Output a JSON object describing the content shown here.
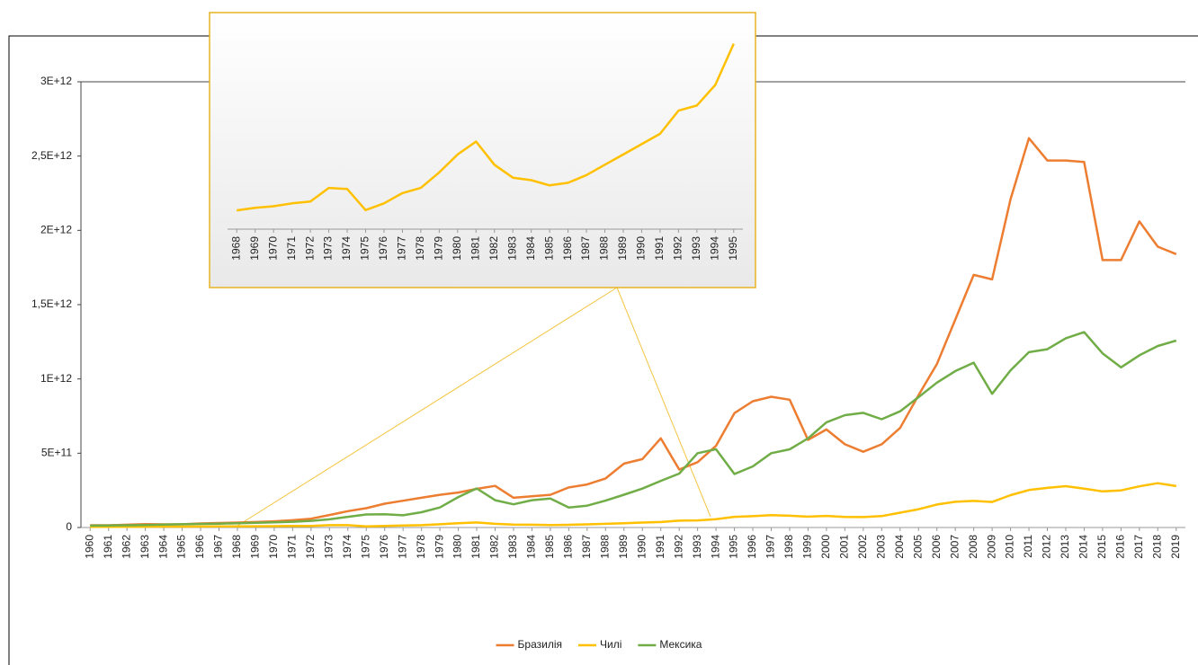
{
  "chart_data": [
    {
      "type": "line",
      "categories": [
        "1960",
        "1961",
        "1962",
        "1963",
        "1964",
        "1965",
        "1966",
        "1967",
        "1968",
        "1969",
        "1970",
        "1971",
        "1972",
        "1973",
        "1974",
        "1975",
        "1976",
        "1977",
        "1978",
        "1979",
        "1980",
        "1981",
        "1982",
        "1983",
        "1984",
        "1985",
        "1986",
        "1987",
        "1988",
        "1989",
        "1990",
        "1991",
        "1992",
        "1993",
        "1994",
        "1995",
        "1996",
        "1997",
        "1998",
        "1999",
        "2000",
        "2001",
        "2002",
        "2003",
        "2004",
        "2005",
        "2006",
        "2007",
        "2008",
        "2009",
        "2010",
        "2011",
        "2012",
        "2013",
        "2014",
        "2015",
        "2016",
        "2017",
        "2018",
        "2019"
      ],
      "series": [
        {
          "name": "Бразилія",
          "color": "#ed7d31",
          "values": [
            15000000000.0,
            15000000000.0,
            19000000000.0,
            23000000000.0,
            21000000000.0,
            22000000000.0,
            27000000000.0,
            30000000000.0,
            33000000000.0,
            37000000000.0,
            42000000000.0,
            49000000000.0,
            59000000000.0,
            84000000000.0,
            110000000000.0,
            130000000000.0,
            160000000000.0,
            180000000000.0,
            200000000000.0,
            220000000000.0,
            235000000000.0,
            260000000000.0,
            280000000000.0,
            200000000000.0,
            210000000000.0,
            220000000000.0,
            270000000000.0,
            290000000000.0,
            330000000000.0,
            430000000000.0,
            460000000000.0,
            600000000000.0,
            390000000000.0,
            440000000000.0,
            550000000000.0,
            770000000000.0,
            850000000000.0,
            880000000000.0,
            860000000000.0,
            590000000000.0,
            660000000000.0,
            560000000000.0,
            510000000000.0,
            560000000000.0,
            670000000000.0,
            890000000000.0,
            1100000000000.0,
            1400000000000.0,
            1700000000000.0,
            1670000000000.0,
            2210000000000.0,
            2620000000000.0,
            2470000000000.0,
            2470000000000.0,
            2460000000000.0,
            1800000000000.0,
            1800000000000.0,
            2060000000000.0,
            1890000000000.0,
            1840000000000.0
          ]
        },
        {
          "name": "Чилі",
          "color": "#ffc000",
          "values": [
            4100000000.0,
            4600000000.0,
            5100000000.0,
            5700000000.0,
            6000000000.0,
            5900000000.0,
            6900000000.0,
            7100000000.0,
            7300000000.0,
            8300000000.0,
            8900000000.0,
            10000000000.0,
            10700000000.0,
            16000000000.0,
            15600000000.0,
            7400000000.0,
            10000000000.0,
            14000000000.0,
            16000000000.0,
            22000000000.0,
            29000000000.0,
            34000000000.0,
            25000000000.0,
            20000000000.0,
            19000000000.0,
            17000000000.0,
            18000000000.0,
            21000000000.0,
            25000000000.0,
            29000000000.0,
            33000000000.0,
            37000000000.0,
            46000000000.0,
            48000000000.0,
            56000000000.0,
            72000000000.0,
            76000000000.0,
            83000000000.0,
            79000000000.0,
            73000000000.0,
            78000000000.0,
            71000000000.0,
            70000000000.0,
            77000000000.0,
            100000000000.0,
            123000000000.0,
            155000000000.0,
            173000000000.0,
            179000000000.0,
            172000000000.0,
            218000000000.0,
            252000000000.0,
            267000000000.0,
            278000000000.0,
            261000000000.0,
            243000000000.0,
            250000000000.0,
            277000000000.0,
            298000000000.0,
            279000000000.0
          ]
        },
        {
          "name": "Мексика",
          "color": "#70ad47",
          "values": [
            13000000000.0,
            14000000000.0,
            15000000000.0,
            17000000000.0,
            20000000000.0,
            22000000000.0,
            24000000000.0,
            26000000000.0,
            29000000000.0,
            32000000000.0,
            35000000000.0,
            39000000000.0,
            45000000000.0,
            55000000000.0,
            72000000000.0,
            88000000000.0,
            89000000000.0,
            82000000000.0,
            103000000000.0,
            135000000000.0,
            205000000000.0,
            263000000000.0,
            184000000000.0,
            156000000000.0,
            184000000000.0,
            195000000000.0,
            134000000000.0,
            147000000000.0,
            181000000000.0,
            221000000000.0,
            262000000000.0,
            314000000000.0,
            363000000000.0,
            500000000000.0,
            527000000000.0,
            360000000000.0,
            411000000000.0,
            500000000000.0,
            526000000000.0,
            600000000000.0,
            708000000000.0,
            756000000000.0,
            772000000000.0,
            729000000000.0,
            782000000000.0,
            877000000000.0,
            975000000000.0,
            1053000000000.0,
            1109000000000.0,
            900000000000.0,
            1058000000000.0,
            1180000000000.0,
            1200000000000.0,
            1274000000000.0,
            1315000000000.0,
            1172000000000.0,
            1078000000000.0,
            1159000000000.0,
            1222000000000.0,
            1258000000000.0
          ]
        }
      ],
      "ylim": [
        0,
        3000000000000.0
      ],
      "yticks": [
        0,
        {
          "value": 500000000000.0,
          "label": "5E+11"
        },
        {
          "value": 1000000000000.0,
          "label": "1E+12"
        },
        {
          "value": 1500000000000.0,
          "label": "1,5E+12"
        },
        {
          "value": 2000000000000.0,
          "label": "2E+12"
        },
        {
          "value": 2500000000000.0,
          "label": "2,5E+12"
        },
        {
          "value": 3000000000000.0,
          "label": "3E+12"
        }
      ],
      "legend": "bottom"
    },
    {
      "type": "line",
      "categories": [
        "1968",
        "1969",
        "1970",
        "1971",
        "1972",
        "1973",
        "1974",
        "1975",
        "1976",
        "1977",
        "1978",
        "1979",
        "1980",
        "1981",
        "1982",
        "1983",
        "1984",
        "1985",
        "1986",
        "1987",
        "1988",
        "1989",
        "1990",
        "1991",
        "1992",
        "1993",
        "1994",
        "1995"
      ],
      "series": [
        {
          "color": "#ffc000",
          "values": [
            7300000000.0,
            8300000000.0,
            8900000000.0,
            10000000000.0,
            10700000000.0,
            16000000000.0,
            15600000000.0,
            7400000000.0,
            10000000000.0,
            14000000000.0,
            16000000000.0,
            22000000000.0,
            29000000000.0,
            34000000000.0,
            25000000000.0,
            20000000000.0,
            19000000000.0,
            17000000000.0,
            18000000000.0,
            21000000000.0,
            25000000000.0,
            29000000000.0,
            33000000000.0,
            37000000000.0,
            46000000000.0,
            48000000000.0,
            56000000000.0,
            72000000000.0
          ]
        }
      ],
      "ylim": [
        0,
        75000000000.0
      ]
    }
  ]
}
